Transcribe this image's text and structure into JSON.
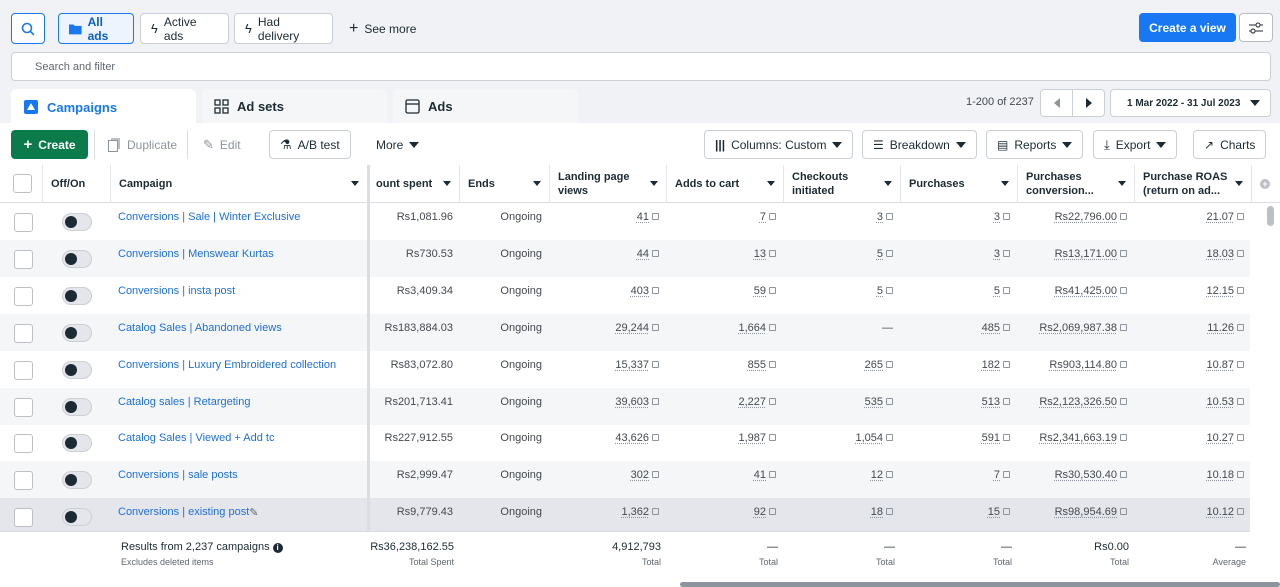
{
  "filters": {
    "all_ads": "All ads",
    "active_ads": "Active ads",
    "had_delivery": "Had delivery",
    "see_more": "See more"
  },
  "header": {
    "create_view": "Create a view",
    "search_placeholder": "Search and filter"
  },
  "tabs": [
    {
      "label": "Campaigns"
    },
    {
      "label": "Ad sets"
    },
    {
      "label": "Ads"
    }
  ],
  "pager": {
    "range": "1-200 of 2237",
    "date_range": "1 Mar 2022 - 31 Jul 2023"
  },
  "toolbar": {
    "create": "Create",
    "duplicate": "Duplicate",
    "edit": "Edit",
    "ab_test": "A/B test",
    "more": "More",
    "columns": "Columns: Custom",
    "breakdown": "Breakdown",
    "reports": "Reports",
    "export": "Export",
    "charts": "Charts"
  },
  "columns": {
    "off_on": "Off/On",
    "campaign": "Campaign",
    "amount_spent": "ount spent",
    "ends": "Ends",
    "landing_page_views": "Landing page views",
    "adds_to_cart": "Adds to cart",
    "checkouts": "Checkouts initiated",
    "purchases": "Purchases",
    "purchases_conv": "Purchases conversion...",
    "roas": "Purchase ROAS (return on ad..."
  },
  "rows": [
    {
      "name": "Conversions | Sale | Winter Exclusive",
      "spent": "Rs1,081.96",
      "ends": "Ongoing",
      "lpv": "41",
      "atc": "7",
      "checkouts": "3",
      "purchases": "3",
      "conv": "Rs22,796.00",
      "roas": "21.07"
    },
    {
      "name": "Conversions | Menswear Kurtas",
      "spent": "Rs730.53",
      "ends": "Ongoing",
      "lpv": "44",
      "atc": "13",
      "checkouts": "5",
      "purchases": "3",
      "conv": "Rs13,171.00",
      "roas": "18.03"
    },
    {
      "name": "Conversions | insta post",
      "spent": "Rs3,409.34",
      "ends": "Ongoing",
      "lpv": "403",
      "atc": "59",
      "checkouts": "5",
      "purchases": "5",
      "conv": "Rs41,425.00",
      "roas": "12.15"
    },
    {
      "name": "Catalog Sales | Abandoned views",
      "spent": "Rs183,884.03",
      "ends": "Ongoing",
      "lpv": "29,244",
      "atc": "1,664",
      "checkouts": "—",
      "purchases": "485",
      "conv": "Rs2,069,987.38",
      "roas": "11.26"
    },
    {
      "name": "Conversions | Luxury Embroidered collection",
      "spent": "Rs83,072.80",
      "ends": "Ongoing",
      "lpv": "15,337",
      "atc": "855",
      "checkouts": "265",
      "purchases": "182",
      "conv": "Rs903,114.80",
      "roas": "10.87"
    },
    {
      "name": "Catalog sales | Retargeting",
      "spent": "Rs201,713.41",
      "ends": "Ongoing",
      "lpv": "39,603",
      "atc": "2,227",
      "checkouts": "535",
      "purchases": "513",
      "conv": "Rs2,123,326.50",
      "roas": "10.53"
    },
    {
      "name": "Catalog Sales | Viewed + Add tc",
      "spent": "Rs227,912.55",
      "ends": "Ongoing",
      "lpv": "43,626",
      "atc": "1,987",
      "checkouts": "1,054",
      "purchases": "591",
      "conv": "Rs2,341,663.19",
      "roas": "10.27"
    },
    {
      "name": "Conversions | sale posts",
      "spent": "Rs2,999.47",
      "ends": "Ongoing",
      "lpv": "302",
      "atc": "41",
      "checkouts": "12",
      "purchases": "7",
      "conv": "Rs30,530.40",
      "roas": "10.18"
    },
    {
      "name": "Conversions | existing post",
      "spent": "Rs9,779.43",
      "ends": "Ongoing",
      "lpv": "1,362",
      "atc": "92",
      "checkouts": "18",
      "purchases": "15",
      "conv": "Rs98,954.69",
      "roas": "10.12"
    }
  ],
  "summary": {
    "results": "Results from 2,237 campaigns",
    "excludes": "Excludes deleted items",
    "spent": "Rs36,238,162.55",
    "spent_sub": "Total Spent",
    "lpv": "4,912,793",
    "lpv_sub": "Total",
    "atc": "—",
    "atc_sub": "Total",
    "checkouts": "—",
    "checkouts_sub": "Total",
    "purchases": "—",
    "purchases_sub": "Total",
    "conv": "Rs0.00",
    "conv_sub": "Total",
    "roas": "—",
    "roas_sub": "Average"
  }
}
